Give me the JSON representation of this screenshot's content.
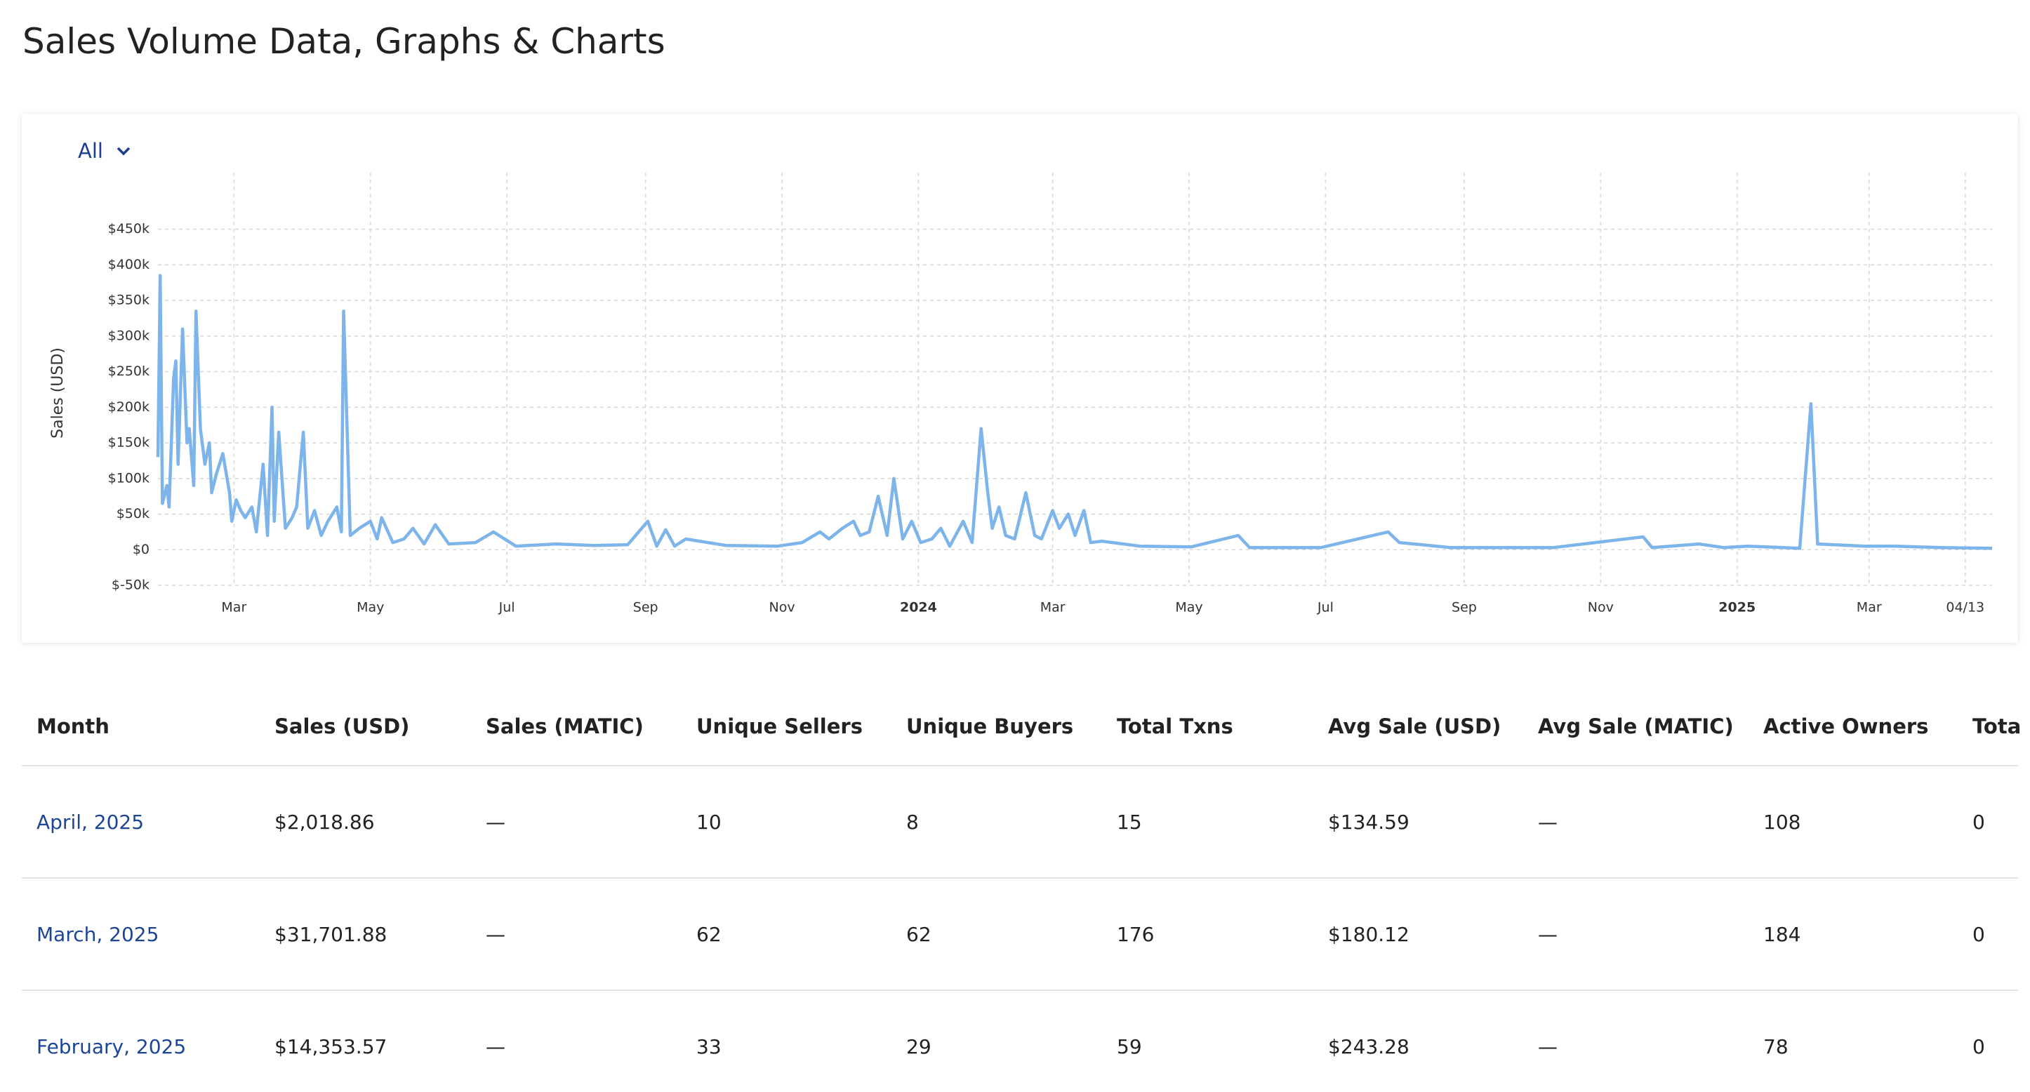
{
  "header": {
    "title": "Sales Volume Data, Graphs & Charts"
  },
  "filter": {
    "label": "All"
  },
  "chart_data": {
    "type": "line",
    "y_label": "Sales (USD)",
    "color": "#7db4ea",
    "grid": true,
    "x": [
      "2023-01-26",
      "2023-01-27",
      "2023-01-28",
      "2023-01-30",
      "2023-01-31",
      "2023-02-02",
      "2023-02-03",
      "2023-02-04",
      "2023-02-06",
      "2023-02-08",
      "2023-02-09",
      "2023-02-11",
      "2023-02-12",
      "2023-02-14",
      "2023-02-16",
      "2023-02-18",
      "2023-02-19",
      "2023-02-21",
      "2023-02-24",
      "2023-02-27",
      "2023-02-28",
      "2023-03-02",
      "2023-03-04",
      "2023-03-06",
      "2023-03-09",
      "2023-03-11",
      "2023-03-14",
      "2023-03-16",
      "2023-03-18",
      "2023-03-19",
      "2023-03-21",
      "2023-03-24",
      "2023-03-27",
      "2023-03-29",
      "2023-04-01",
      "2023-04-03",
      "2023-04-06",
      "2023-04-09",
      "2023-04-12",
      "2023-04-16",
      "2023-04-18",
      "2023-04-19",
      "2023-04-22",
      "2023-04-26",
      "2023-05-01",
      "2023-05-04",
      "2023-05-06",
      "2023-05-11",
      "2023-05-16",
      "2023-05-20",
      "2023-05-25",
      "2023-05-30",
      "2023-06-05",
      "2023-06-17",
      "2023-06-25",
      "2023-07-05",
      "2023-07-23",
      "2023-08-09",
      "2023-08-24",
      "2023-09-02",
      "2023-09-06",
      "2023-09-10",
      "2023-09-14",
      "2023-09-19",
      "2023-10-07",
      "2023-10-30",
      "2023-11-10",
      "2023-11-18",
      "2023-11-22",
      "2023-11-28",
      "2023-12-03",
      "2023-12-06",
      "2023-12-10",
      "2023-12-14",
      "2023-12-18",
      "2023-12-21",
      "2023-12-25",
      "2023-12-29",
      "2024-01-02",
      "2024-01-07",
      "2024-01-11",
      "2024-01-15",
      "2024-01-21",
      "2024-01-25",
      "2024-01-29",
      "2024-02-01",
      "2024-02-03",
      "2024-02-06",
      "2024-02-09",
      "2024-02-13",
      "2024-02-18",
      "2024-02-22",
      "2024-02-25",
      "2024-03-01",
      "2024-03-04",
      "2024-03-08",
      "2024-03-11",
      "2024-03-15",
      "2024-03-18",
      "2024-03-23",
      "2024-04-09",
      "2024-05-02",
      "2024-05-23",
      "2024-05-28",
      "2024-06-29",
      "2024-07-29",
      "2024-08-03",
      "2024-08-26",
      "2024-10-11",
      "2024-11-20",
      "2024-11-24",
      "2024-12-15",
      "2024-12-26",
      "2025-01-06",
      "2025-01-29",
      "2025-02-03",
      "2025-02-06",
      "2025-02-27",
      "2025-03-13",
      "2025-04-02",
      "2025-04-25"
    ],
    "values": [
      130000,
      385000,
      65000,
      90000,
      60000,
      240000,
      265000,
      120000,
      310000,
      150000,
      170000,
      90000,
      335000,
      170000,
      120000,
      150000,
      80000,
      105000,
      135000,
      80000,
      40000,
      70000,
      55000,
      45000,
      60000,
      25000,
      120000,
      20000,
      200000,
      40000,
      165000,
      30000,
      45000,
      60000,
      165000,
      30000,
      55000,
      20000,
      40000,
      60000,
      25000,
      335000,
      20000,
      30000,
      40000,
      15000,
      45000,
      10000,
      15000,
      30000,
      8000,
      35000,
      8000,
      10000,
      25000,
      5000,
      8000,
      6000,
      7000,
      40000,
      5000,
      28000,
      5000,
      15000,
      6000,
      5000,
      10000,
      25000,
      15000,
      30000,
      40000,
      20000,
      25000,
      75000,
      20000,
      100000,
      15000,
      40000,
      10000,
      15000,
      30000,
      5000,
      40000,
      10000,
      170000,
      80000,
      30000,
      60000,
      20000,
      15000,
      80000,
      20000,
      15000,
      55000,
      30000,
      50000,
      20000,
      55000,
      10000,
      12000,
      5000,
      4000,
      20000,
      3000,
      3000,
      25000,
      10000,
      3000,
      3000,
      18000,
      3000,
      8000,
      3000,
      5000,
      2000,
      205000,
      8000,
      5000,
      5000,
      3000,
      2000
    ],
    "xlim": [
      "2023-01-26",
      "2025-04-25"
    ],
    "xticks": [
      {
        "value": "2023-03-01",
        "label": "Mar"
      },
      {
        "value": "2023-05-01",
        "label": "May"
      },
      {
        "value": "2023-07-01",
        "label": "Jul"
      },
      {
        "value": "2023-09-01",
        "label": "Sep"
      },
      {
        "value": "2023-11-01",
        "label": "Nov"
      },
      {
        "value": "2024-01-01",
        "label": "2024"
      },
      {
        "value": "2024-03-01",
        "label": "Mar"
      },
      {
        "value": "2024-05-01",
        "label": "May"
      },
      {
        "value": "2024-07-01",
        "label": "Jul"
      },
      {
        "value": "2024-09-01",
        "label": "Sep"
      },
      {
        "value": "2024-11-01",
        "label": "Nov"
      },
      {
        "value": "2025-01-01",
        "label": "2025"
      },
      {
        "value": "2025-03-01",
        "label": "Mar"
      },
      {
        "value": "2025-04-13",
        "label": "04/13"
      }
    ],
    "ylim": [
      -50000,
      490000
    ],
    "yticks": [
      {
        "value": -50000,
        "label": "$-50k"
      },
      {
        "value": 0,
        "label": "$0"
      },
      {
        "value": 50000,
        "label": "$50k"
      },
      {
        "value": 100000,
        "label": "$100k"
      },
      {
        "value": 150000,
        "label": "$150k"
      },
      {
        "value": 200000,
        "label": "$200k"
      },
      {
        "value": 250000,
        "label": "$250k"
      },
      {
        "value": 300000,
        "label": "$300k"
      },
      {
        "value": 350000,
        "label": "$350k"
      },
      {
        "value": 400000,
        "label": "$400k"
      },
      {
        "value": 450000,
        "label": "$450k"
      }
    ]
  },
  "table": {
    "columns": [
      "Month",
      "Sales (USD)",
      "Sales (MATIC)",
      "Unique Sellers",
      "Unique Buyers",
      "Total Txns",
      "Avg Sale (USD)",
      "Avg Sale (MATIC)",
      "Active Owners",
      "Tota"
    ],
    "rows": [
      [
        "April, 2025",
        "$2,018.86",
        "—",
        "10",
        "8",
        "15",
        "$134.59",
        "—",
        "108",
        "0"
      ],
      [
        "March, 2025",
        "$31,701.88",
        "—",
        "62",
        "62",
        "176",
        "$180.12",
        "—",
        "184",
        "0"
      ],
      [
        "February, 2025",
        "$14,353.57",
        "—",
        "33",
        "29",
        "59",
        "$243.28",
        "—",
        "78",
        "0"
      ]
    ]
  }
}
